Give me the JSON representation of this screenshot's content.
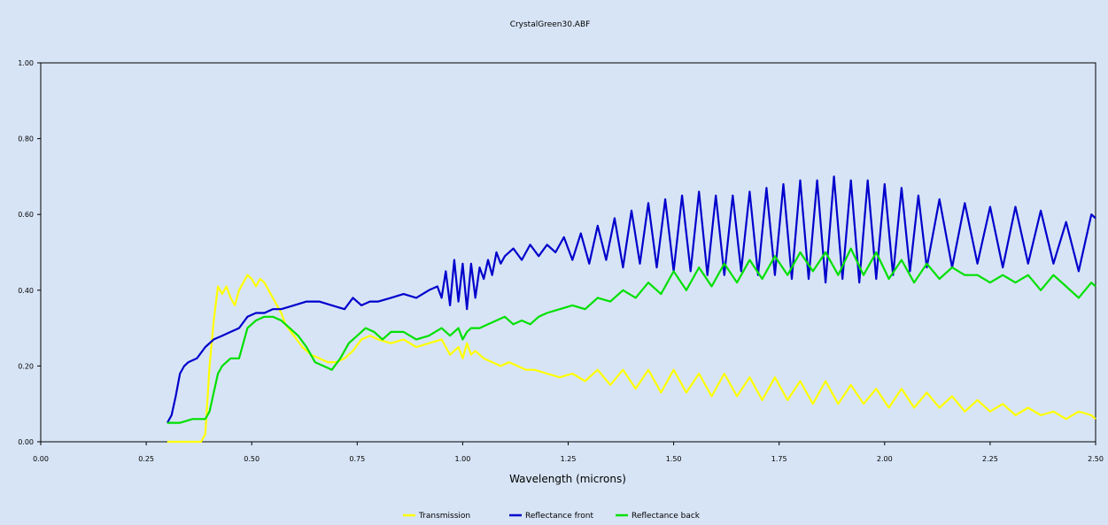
{
  "chart_data": {
    "type": "line",
    "title": "CrystalGreen30.ABF",
    "xlabel": "Wavelength (microns)",
    "ylabel": "",
    "xlim": [
      0.0,
      2.5
    ],
    "ylim": [
      0.0,
      1.0
    ],
    "xticks": [
      "0.00",
      "0.25",
      "0.50",
      "0.75",
      "1.00",
      "1.25",
      "1.50",
      "1.75",
      "2.00",
      "2.25",
      "2.50"
    ],
    "yticks": [
      "0.00",
      "0.20",
      "0.40",
      "0.60",
      "0.80",
      "1.00"
    ],
    "grid": false,
    "legend_position": "bottom-center",
    "series": [
      {
        "name": "Transmission",
        "color": "#ffff00",
        "x": [
          0.3,
          0.33,
          0.36,
          0.38,
          0.39,
          0.4,
          0.41,
          0.42,
          0.43,
          0.44,
          0.45,
          0.46,
          0.47,
          0.48,
          0.49,
          0.5,
          0.51,
          0.52,
          0.53,
          0.54,
          0.55,
          0.56,
          0.57,
          0.58,
          0.6,
          0.62,
          0.64,
          0.66,
          0.68,
          0.7,
          0.72,
          0.74,
          0.76,
          0.78,
          0.8,
          0.83,
          0.86,
          0.89,
          0.92,
          0.95,
          0.97,
          0.99,
          1.0,
          1.01,
          1.02,
          1.03,
          1.05,
          1.07,
          1.09,
          1.11,
          1.13,
          1.15,
          1.17,
          1.2,
          1.23,
          1.26,
          1.29,
          1.32,
          1.35,
          1.38,
          1.41,
          1.44,
          1.47,
          1.5,
          1.53,
          1.56,
          1.59,
          1.62,
          1.65,
          1.68,
          1.71,
          1.74,
          1.77,
          1.8,
          1.83,
          1.86,
          1.89,
          1.92,
          1.95,
          1.98,
          2.01,
          2.04,
          2.07,
          2.1,
          2.13,
          2.16,
          2.19,
          2.22,
          2.25,
          2.28,
          2.31,
          2.34,
          2.37,
          2.4,
          2.43,
          2.46,
          2.49,
          2.5
        ],
        "y": [
          0.0,
          0.0,
          0.0,
          0.0,
          0.02,
          0.2,
          0.32,
          0.41,
          0.39,
          0.41,
          0.38,
          0.36,
          0.4,
          0.42,
          0.44,
          0.43,
          0.41,
          0.43,
          0.42,
          0.4,
          0.38,
          0.36,
          0.34,
          0.31,
          0.28,
          0.25,
          0.23,
          0.22,
          0.21,
          0.21,
          0.22,
          0.24,
          0.27,
          0.28,
          0.27,
          0.26,
          0.27,
          0.25,
          0.26,
          0.27,
          0.23,
          0.25,
          0.22,
          0.26,
          0.23,
          0.24,
          0.22,
          0.21,
          0.2,
          0.21,
          0.2,
          0.19,
          0.19,
          0.18,
          0.17,
          0.18,
          0.16,
          0.19,
          0.15,
          0.19,
          0.14,
          0.19,
          0.13,
          0.19,
          0.13,
          0.18,
          0.12,
          0.18,
          0.12,
          0.17,
          0.11,
          0.17,
          0.11,
          0.16,
          0.1,
          0.16,
          0.1,
          0.15,
          0.1,
          0.14,
          0.09,
          0.14,
          0.09,
          0.13,
          0.09,
          0.12,
          0.08,
          0.11,
          0.08,
          0.1,
          0.07,
          0.09,
          0.07,
          0.08,
          0.06,
          0.08,
          0.07,
          0.06
        ]
      },
      {
        "name": "Reflectance front",
        "color": "#0000cc",
        "x": [
          0.3,
          0.31,
          0.32,
          0.33,
          0.34,
          0.35,
          0.37,
          0.39,
          0.41,
          0.43,
          0.45,
          0.47,
          0.49,
          0.51,
          0.53,
          0.55,
          0.57,
          0.6,
          0.63,
          0.66,
          0.69,
          0.72,
          0.74,
          0.76,
          0.78,
          0.8,
          0.83,
          0.86,
          0.89,
          0.92,
          0.94,
          0.95,
          0.96,
          0.97,
          0.98,
          0.99,
          1.0,
          1.01,
          1.02,
          1.03,
          1.04,
          1.05,
          1.06,
          1.07,
          1.08,
          1.09,
          1.1,
          1.12,
          1.14,
          1.16,
          1.18,
          1.2,
          1.22,
          1.24,
          1.26,
          1.28,
          1.3,
          1.32,
          1.34,
          1.36,
          1.38,
          1.4,
          1.42,
          1.44,
          1.46,
          1.48,
          1.5,
          1.52,
          1.54,
          1.56,
          1.58,
          1.6,
          1.62,
          1.64,
          1.66,
          1.68,
          1.7,
          1.72,
          1.74,
          1.76,
          1.78,
          1.8,
          1.82,
          1.84,
          1.86,
          1.88,
          1.9,
          1.92,
          1.94,
          1.96,
          1.98,
          2.0,
          2.02,
          2.04,
          2.06,
          2.08,
          2.1,
          2.13,
          2.16,
          2.19,
          2.22,
          2.25,
          2.28,
          2.31,
          2.34,
          2.37,
          2.4,
          2.43,
          2.46,
          2.49,
          2.5
        ],
        "y": [
          0.05,
          0.07,
          0.12,
          0.18,
          0.2,
          0.21,
          0.22,
          0.25,
          0.27,
          0.28,
          0.29,
          0.3,
          0.33,
          0.34,
          0.34,
          0.35,
          0.35,
          0.36,
          0.37,
          0.37,
          0.36,
          0.35,
          0.38,
          0.36,
          0.37,
          0.37,
          0.38,
          0.39,
          0.38,
          0.4,
          0.41,
          0.38,
          0.45,
          0.36,
          0.48,
          0.37,
          0.47,
          0.35,
          0.47,
          0.38,
          0.46,
          0.43,
          0.48,
          0.44,
          0.5,
          0.47,
          0.49,
          0.51,
          0.48,
          0.52,
          0.49,
          0.52,
          0.5,
          0.54,
          0.48,
          0.55,
          0.47,
          0.57,
          0.48,
          0.59,
          0.46,
          0.61,
          0.47,
          0.63,
          0.46,
          0.64,
          0.45,
          0.65,
          0.45,
          0.66,
          0.44,
          0.65,
          0.44,
          0.65,
          0.45,
          0.66,
          0.44,
          0.67,
          0.44,
          0.68,
          0.43,
          0.69,
          0.43,
          0.69,
          0.42,
          0.7,
          0.43,
          0.69,
          0.42,
          0.69,
          0.43,
          0.68,
          0.44,
          0.67,
          0.45,
          0.65,
          0.46,
          0.64,
          0.46,
          0.63,
          0.47,
          0.62,
          0.46,
          0.62,
          0.47,
          0.61,
          0.47,
          0.58,
          0.45,
          0.6,
          0.59
        ]
      },
      {
        "name": "Reflectance back",
        "color": "#00e000",
        "x": [
          0.3,
          0.33,
          0.36,
          0.38,
          0.39,
          0.4,
          0.41,
          0.42,
          0.43,
          0.44,
          0.45,
          0.47,
          0.49,
          0.51,
          0.53,
          0.55,
          0.57,
          0.59,
          0.61,
          0.63,
          0.65,
          0.67,
          0.69,
          0.71,
          0.73,
          0.75,
          0.77,
          0.79,
          0.81,
          0.83,
          0.86,
          0.89,
          0.92,
          0.95,
          0.97,
          0.99,
          1.0,
          1.01,
          1.02,
          1.04,
          1.06,
          1.08,
          1.1,
          1.12,
          1.14,
          1.16,
          1.18,
          1.2,
          1.23,
          1.26,
          1.29,
          1.32,
          1.35,
          1.38,
          1.41,
          1.44,
          1.47,
          1.5,
          1.53,
          1.56,
          1.59,
          1.62,
          1.65,
          1.68,
          1.71,
          1.74,
          1.77,
          1.8,
          1.83,
          1.86,
          1.89,
          1.92,
          1.95,
          1.98,
          2.01,
          2.04,
          2.07,
          2.1,
          2.13,
          2.16,
          2.19,
          2.22,
          2.25,
          2.28,
          2.31,
          2.34,
          2.37,
          2.4,
          2.43,
          2.46,
          2.49,
          2.5
        ],
        "y": [
          0.05,
          0.05,
          0.06,
          0.06,
          0.06,
          0.08,
          0.13,
          0.18,
          0.2,
          0.21,
          0.22,
          0.22,
          0.3,
          0.32,
          0.33,
          0.33,
          0.32,
          0.3,
          0.28,
          0.25,
          0.21,
          0.2,
          0.19,
          0.22,
          0.26,
          0.28,
          0.3,
          0.29,
          0.27,
          0.29,
          0.29,
          0.27,
          0.28,
          0.3,
          0.28,
          0.3,
          0.27,
          0.29,
          0.3,
          0.3,
          0.31,
          0.32,
          0.33,
          0.31,
          0.32,
          0.31,
          0.33,
          0.34,
          0.35,
          0.36,
          0.35,
          0.38,
          0.37,
          0.4,
          0.38,
          0.42,
          0.39,
          0.45,
          0.4,
          0.46,
          0.41,
          0.47,
          0.42,
          0.48,
          0.43,
          0.49,
          0.44,
          0.5,
          0.45,
          0.5,
          0.44,
          0.51,
          0.44,
          0.5,
          0.43,
          0.48,
          0.42,
          0.47,
          0.43,
          0.46,
          0.44,
          0.44,
          0.42,
          0.44,
          0.42,
          0.44,
          0.4,
          0.44,
          0.41,
          0.38,
          0.42,
          0.41
        ]
      }
    ]
  }
}
